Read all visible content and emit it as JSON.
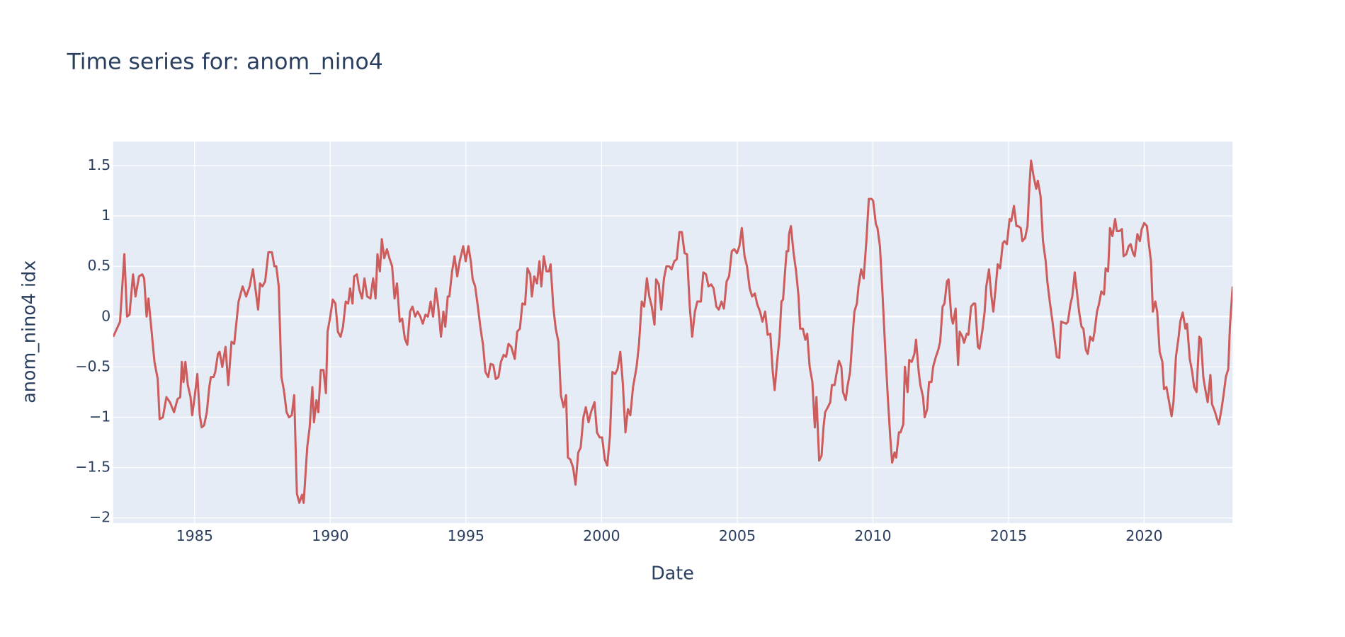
{
  "chart_data": {
    "type": "line",
    "title": "Time series for: anom_nino4",
    "x_label": "Date",
    "y_label": "anom_nino4 idx",
    "color": "#cd5c5c",
    "grid": true,
    "xlim": [
      1982,
      2023.26
    ],
    "xticks": [
      1985,
      1990,
      1995,
      2000,
      2005,
      2010,
      2015,
      2020
    ],
    "ylim": [
      -2.05,
      1.74
    ],
    "yticks": [
      {
        "value": -2,
        "label": "−2"
      },
      {
        "value": -1.5,
        "label": "−1.5"
      },
      {
        "value": -1,
        "label": "−1"
      },
      {
        "value": -0.5,
        "label": "−0.5"
      },
      0,
      0.5,
      1,
      1.5
    ],
    "x": [
      1982.0,
      1982.25,
      1982.41,
      1982.51,
      1982.6,
      1982.73,
      1982.82,
      1982.95,
      1983.07,
      1983.14,
      1983.23,
      1983.3,
      1983.52,
      1983.64,
      1983.71,
      1983.83,
      1983.96,
      1984.09,
      1984.24,
      1984.37,
      1984.47,
      1984.53,
      1984.59,
      1984.66,
      1984.75,
      1984.85,
      1984.91,
      1985.0,
      1985.1,
      1985.19,
      1985.26,
      1985.35,
      1985.45,
      1985.54,
      1985.6,
      1985.7,
      1985.76,
      1985.86,
      1985.92,
      1986.02,
      1986.14,
      1986.24,
      1986.36,
      1986.46,
      1986.62,
      1986.77,
      1986.9,
      1987.03,
      1987.15,
      1987.34,
      1987.41,
      1987.5,
      1987.6,
      1987.72,
      1987.85,
      1987.94,
      1988.01,
      1988.1,
      1988.2,
      1988.29,
      1988.39,
      1988.48,
      1988.58,
      1988.67,
      1988.77,
      1988.86,
      1988.96,
      1989.02,
      1989.15,
      1989.24,
      1989.34,
      1989.4,
      1989.49,
      1989.56,
      1989.65,
      1989.75,
      1989.84,
      1989.9,
      1990.0,
      1990.09,
      1990.19,
      1990.28,
      1990.38,
      1990.47,
      1990.57,
      1990.66,
      1990.73,
      1990.82,
      1990.88,
      1990.98,
      1991.07,
      1991.17,
      1991.26,
      1991.36,
      1991.48,
      1991.58,
      1991.67,
      1991.74,
      1991.83,
      1991.9,
      1991.99,
      1992.09,
      1992.18,
      1992.28,
      1992.37,
      1992.46,
      1992.56,
      1992.65,
      1992.75,
      1992.84,
      1992.94,
      1993.03,
      1993.13,
      1993.22,
      1993.32,
      1993.41,
      1993.51,
      1993.6,
      1993.7,
      1993.79,
      1993.89,
      1993.98,
      1994.08,
      1994.17,
      1994.24,
      1994.33,
      1994.39,
      1994.49,
      1994.58,
      1994.68,
      1994.77,
      1994.9,
      1994.99,
      1995.09,
      1995.18,
      1995.25,
      1995.34,
      1995.44,
      1995.53,
      1995.63,
      1995.72,
      1995.82,
      1995.91,
      1996.01,
      1996.1,
      1996.2,
      1996.29,
      1996.39,
      1996.48,
      1996.57,
      1996.67,
      1996.8,
      1996.89,
      1996.99,
      1997.08,
      1997.18,
      1997.27,
      1997.37,
      1997.43,
      1997.52,
      1997.62,
      1997.71,
      1997.78,
      1997.87,
      1997.97,
      1998.06,
      1998.12,
      1998.22,
      1998.31,
      1998.41,
      1998.5,
      1998.6,
      1998.69,
      1998.76,
      1998.85,
      1998.95,
      1999.04,
      1999.14,
      1999.23,
      1999.33,
      1999.42,
      1999.52,
      1999.61,
      1999.74,
      1999.83,
      1999.93,
      2000.02,
      2000.12,
      2000.21,
      2000.31,
      2000.4,
      2000.5,
      2000.59,
      2000.69,
      2000.78,
      2000.88,
      2000.97,
      2001.06,
      2001.16,
      2001.29,
      2001.38,
      2001.48,
      2001.57,
      2001.67,
      2001.76,
      2001.85,
      2001.95,
      2002.01,
      2002.11,
      2002.2,
      2002.3,
      2002.39,
      2002.49,
      2002.58,
      2002.68,
      2002.77,
      2002.87,
      2002.96,
      2003.06,
      2003.15,
      2003.25,
      2003.34,
      2003.44,
      2003.53,
      2003.66,
      2003.75,
      2003.85,
      2003.94,
      2004.04,
      2004.13,
      2004.23,
      2004.32,
      2004.42,
      2004.51,
      2004.61,
      2004.7,
      2004.8,
      2004.89,
      2004.99,
      2005.08,
      2005.17,
      2005.27,
      2005.36,
      2005.46,
      2005.55,
      2005.65,
      2005.74,
      2005.84,
      2005.93,
      2006.03,
      2006.12,
      2006.22,
      2006.31,
      2006.38,
      2006.47,
      2006.56,
      2006.63,
      2006.69,
      2006.75,
      2006.82,
      2006.88,
      2006.91,
      2006.98,
      2007.07,
      2007.17,
      2007.26,
      2007.32,
      2007.42,
      2007.51,
      2007.58,
      2007.67,
      2007.77,
      2007.86,
      2007.92,
      2008.02,
      2008.11,
      2008.18,
      2008.24,
      2008.34,
      2008.43,
      2008.49,
      2008.59,
      2008.65,
      2008.75,
      2008.84,
      2008.9,
      2009.0,
      2009.06,
      2009.16,
      2009.25,
      2009.32,
      2009.41,
      2009.47,
      2009.57,
      2009.66,
      2009.76,
      2009.85,
      2009.95,
      2010.01,
      2010.11,
      2010.17,
      2010.26,
      2010.36,
      2010.45,
      2010.55,
      2010.64,
      2010.71,
      2010.8,
      2010.86,
      2010.96,
      2011.02,
      2011.12,
      2011.18,
      2011.28,
      2011.34,
      2011.43,
      2011.53,
      2011.59,
      2011.69,
      2011.75,
      2011.85,
      2011.91,
      2012.0,
      2012.07,
      2012.16,
      2012.22,
      2012.32,
      2012.41,
      2012.48,
      2012.57,
      2012.64,
      2012.73,
      2012.79,
      2012.89,
      2012.95,
      2013.05,
      2013.14,
      2013.2,
      2013.3,
      2013.36,
      2013.46,
      2013.52,
      2013.62,
      2013.71,
      2013.77,
      2013.87,
      2013.93,
      2014.03,
      2014.12,
      2014.18,
      2014.28,
      2014.37,
      2014.44,
      2014.53,
      2014.6,
      2014.69,
      2014.79,
      2014.85,
      2014.94,
      2015.04,
      2015.1,
      2015.2,
      2015.29,
      2015.35,
      2015.45,
      2015.51,
      2015.61,
      2015.7,
      2015.77,
      2015.83,
      2015.92,
      2016.02,
      2016.08,
      2016.18,
      2016.27,
      2016.37,
      2016.43,
      2016.52,
      2016.62,
      2016.71,
      2016.78,
      2016.87,
      2016.94,
      2017.03,
      2017.13,
      2017.19,
      2017.28,
      2017.35,
      2017.44,
      2017.54,
      2017.6,
      2017.69,
      2017.76,
      2017.85,
      2017.92,
      2018.01,
      2018.11,
      2018.17,
      2018.26,
      2018.33,
      2018.42,
      2018.52,
      2018.58,
      2018.67,
      2018.74,
      2018.83,
      2018.93,
      2018.99,
      2019.09,
      2019.18,
      2019.24,
      2019.34,
      2019.43,
      2019.5,
      2019.59,
      2019.65,
      2019.75,
      2019.84,
      2019.91,
      2020.0,
      2020.1,
      2020.16,
      2020.25,
      2020.32,
      2020.41,
      2020.48,
      2020.57,
      2020.67,
      2020.73,
      2020.82,
      2020.92,
      2021.01,
      2021.08,
      2021.17,
      2021.27,
      2021.33,
      2021.42,
      2021.52,
      2021.58,
      2021.68,
      2021.77,
      2021.84,
      2021.93,
      2022.03,
      2022.09,
      2022.18,
      2022.25,
      2022.34,
      2022.44,
      2022.5,
      2022.59,
      2022.69,
      2022.75,
      2022.85,
      2022.94,
      2023.01,
      2023.1,
      2023.16,
      2023.26
    ],
    "values": [
      -0.2,
      -0.05,
      0.62,
      0.0,
      0.02,
      0.42,
      0.2,
      0.4,
      0.42,
      0.38,
      0.0,
      0.18,
      -0.45,
      -0.62,
      -1.02,
      -1.0,
      -0.8,
      -0.85,
      -0.95,
      -0.82,
      -0.8,
      -0.45,
      -0.65,
      -0.45,
      -0.68,
      -0.8,
      -0.98,
      -0.8,
      -0.57,
      -0.98,
      -1.1,
      -1.08,
      -0.95,
      -0.7,
      -0.6,
      -0.6,
      -0.55,
      -0.37,
      -0.35,
      -0.5,
      -0.3,
      -0.68,
      -0.25,
      -0.27,
      0.15,
      0.3,
      0.2,
      0.3,
      0.47,
      0.07,
      0.33,
      0.3,
      0.35,
      0.64,
      0.64,
      0.5,
      0.5,
      0.3,
      -0.6,
      -0.73,
      -0.95,
      -1.0,
      -0.98,
      -0.78,
      -1.76,
      -1.85,
      -1.77,
      -1.85,
      -1.3,
      -1.1,
      -0.7,
      -1.05,
      -0.83,
      -0.95,
      -0.53,
      -0.53,
      -0.76,
      -0.15,
      0.0,
      0.17,
      0.13,
      -0.15,
      -0.2,
      -0.1,
      0.15,
      0.13,
      0.28,
      0.13,
      0.4,
      0.42,
      0.27,
      0.18,
      0.38,
      0.2,
      0.18,
      0.38,
      0.18,
      0.62,
      0.45,
      0.77,
      0.58,
      0.67,
      0.58,
      0.5,
      0.18,
      0.33,
      -0.05,
      -0.02,
      -0.22,
      -0.28,
      0.05,
      0.1,
      0.0,
      0.05,
      0.0,
      -0.07,
      0.02,
      0.0,
      0.15,
      0.0,
      0.28,
      0.1,
      -0.2,
      0.05,
      -0.1,
      0.2,
      0.2,
      0.45,
      0.6,
      0.4,
      0.55,
      0.7,
      0.55,
      0.7,
      0.55,
      0.37,
      0.3,
      0.1,
      -0.1,
      -0.28,
      -0.55,
      -0.6,
      -0.47,
      -0.48,
      -0.62,
      -0.6,
      -0.45,
      -0.38,
      -0.4,
      -0.27,
      -0.3,
      -0.42,
      -0.15,
      -0.12,
      0.13,
      0.12,
      0.48,
      0.42,
      0.2,
      0.4,
      0.33,
      0.55,
      0.3,
      0.6,
      0.45,
      0.45,
      0.52,
      0.1,
      -0.12,
      -0.25,
      -0.78,
      -0.9,
      -0.78,
      -1.4,
      -1.42,
      -1.5,
      -1.67,
      -1.35,
      -1.3,
      -1.0,
      -0.9,
      -1.05,
      -0.95,
      -0.85,
      -1.15,
      -1.2,
      -1.2,
      -1.42,
      -1.48,
      -1.18,
      -0.55,
      -0.57,
      -0.52,
      -0.35,
      -0.65,
      -1.15,
      -0.92,
      -0.98,
      -0.7,
      -0.5,
      -0.27,
      0.15,
      0.1,
      0.38,
      0.2,
      0.1,
      -0.08,
      0.37,
      0.32,
      0.07,
      0.38,
      0.5,
      0.5,
      0.47,
      0.55,
      0.57,
      0.84,
      0.84,
      0.63,
      0.62,
      0.1,
      -0.2,
      0.05,
      0.15,
      0.15,
      0.44,
      0.42,
      0.3,
      0.32,
      0.28,
      0.1,
      0.07,
      0.15,
      0.08,
      0.35,
      0.4,
      0.65,
      0.67,
      0.63,
      0.7,
      0.88,
      0.6,
      0.5,
      0.28,
      0.2,
      0.23,
      0.12,
      0.05,
      -0.05,
      0.05,
      -0.18,
      -0.17,
      -0.55,
      -0.73,
      -0.45,
      -0.2,
      0.15,
      0.17,
      0.4,
      0.65,
      0.65,
      0.82,
      0.9,
      0.65,
      0.45,
      0.2,
      -0.12,
      -0.12,
      -0.23,
      -0.17,
      -0.5,
      -0.65,
      -1.1,
      -0.8,
      -1.43,
      -1.38,
      -1.1,
      -0.95,
      -0.9,
      -0.85,
      -0.68,
      -0.68,
      -0.58,
      -0.44,
      -0.5,
      -0.75,
      -0.83,
      -0.7,
      -0.55,
      -0.2,
      0.05,
      0.13,
      0.3,
      0.47,
      0.38,
      0.75,
      1.17,
      1.17,
      1.15,
      0.92,
      0.88,
      0.7,
      0.2,
      -0.3,
      -0.8,
      -1.2,
      -1.45,
      -1.35,
      -1.4,
      -1.15,
      -1.15,
      -1.07,
      -0.5,
      -0.75,
      -0.43,
      -0.45,
      -0.37,
      -0.23,
      -0.55,
      -0.68,
      -0.8,
      -1.0,
      -0.92,
      -0.65,
      -0.65,
      -0.5,
      -0.4,
      -0.33,
      -0.25,
      0.1,
      0.13,
      0.35,
      0.37,
      0.0,
      -0.07,
      0.08,
      -0.48,
      -0.15,
      -0.2,
      -0.26,
      -0.17,
      -0.18,
      0.1,
      0.13,
      0.13,
      -0.3,
      -0.32,
      -0.15,
      0.05,
      0.3,
      0.47,
      0.2,
      0.05,
      0.3,
      0.52,
      0.48,
      0.73,
      0.75,
      0.72,
      0.97,
      0.95,
      1.1,
      0.9,
      0.9,
      0.88,
      0.75,
      0.78,
      0.9,
      1.3,
      1.55,
      1.4,
      1.27,
      1.35,
      1.2,
      0.75,
      0.55,
      0.35,
      0.15,
      -0.05,
      -0.25,
      -0.4,
      -0.41,
      -0.05,
      -0.06,
      -0.07,
      -0.05,
      0.12,
      0.2,
      0.44,
      0.2,
      0.05,
      -0.1,
      -0.12,
      -0.33,
      -0.37,
      -0.2,
      -0.24,
      -0.15,
      0.05,
      0.12,
      0.25,
      0.22,
      0.48,
      0.45,
      0.88,
      0.8,
      0.97,
      0.85,
      0.85,
      0.87,
      0.6,
      0.62,
      0.7,
      0.72,
      0.63,
      0.6,
      0.82,
      0.75,
      0.87,
      0.93,
      0.9,
      0.75,
      0.55,
      0.05,
      0.15,
      0.05,
      -0.35,
      -0.45,
      -0.72,
      -0.7,
      -0.85,
      -0.99,
      -0.85,
      -0.4,
      -0.2,
      -0.05,
      0.04,
      -0.12,
      -0.07,
      -0.42,
      -0.55,
      -0.7,
      -0.75,
      -0.2,
      -0.22,
      -0.6,
      -0.72,
      -0.85,
      -0.58,
      -0.87,
      -0.93,
      -1.02,
      -1.07,
      -0.92,
      -0.75,
      -0.6,
      -0.52,
      -0.1,
      0.3
    ]
  }
}
